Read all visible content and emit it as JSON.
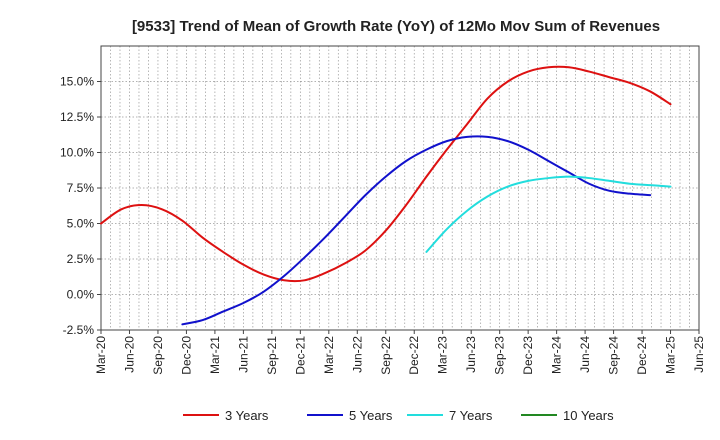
{
  "chart_data": {
    "type": "line",
    "title": "[9533]  Trend of Mean of Growth Rate (YoY) of 12Mo Mov Sum of Revenues",
    "xlabel": "",
    "ylabel": "",
    "ylim": [
      -2.5,
      17.5
    ],
    "x_tick_labels": [
      "Mar-20",
      "Jun-20",
      "Sep-20",
      "Dec-20",
      "Mar-21",
      "Jun-21",
      "Sep-21",
      "Dec-21",
      "Mar-22",
      "Jun-22",
      "Sep-22",
      "Dec-22",
      "Mar-23",
      "Jun-23",
      "Sep-23",
      "Dec-23",
      "Mar-24",
      "Jun-24",
      "Sep-24",
      "Dec-24",
      "Mar-25",
      "Jun-25"
    ],
    "y_ticks": [
      -2.5,
      0,
      2.5,
      5,
      7.5,
      10,
      12.5,
      15
    ],
    "y_tick_labels": [
      "-2.5%",
      "0.0%",
      "2.5%",
      "5.0%",
      "7.5%",
      "10.0%",
      "12.5%",
      "15.0%"
    ],
    "grid": true,
    "series": [
      {
        "name": "3 Years",
        "color": "#dd1111",
        "points": [
          [
            0,
            5.0
          ],
          [
            1,
            6.0
          ],
          [
            2,
            6.3
          ],
          [
            3,
            6.0
          ],
          [
            4,
            5.2
          ],
          [
            5,
            4.0
          ],
          [
            6,
            3.0
          ],
          [
            7,
            2.1
          ],
          [
            8,
            1.4
          ],
          [
            9,
            1.0
          ],
          [
            10,
            1.0
          ],
          [
            11,
            1.5
          ],
          [
            12,
            2.2
          ],
          [
            13,
            3.1
          ],
          [
            14,
            4.5
          ],
          [
            15,
            6.3
          ],
          [
            16,
            8.3
          ],
          [
            17,
            10.2
          ],
          [
            18,
            12.0
          ],
          [
            19,
            13.8
          ],
          [
            20,
            15.0
          ],
          [
            21,
            15.7
          ],
          [
            22,
            16.0
          ],
          [
            23,
            16.0
          ],
          [
            24,
            15.7
          ],
          [
            25,
            15.3
          ],
          [
            26,
            14.9
          ],
          [
            27,
            14.3
          ],
          [
            28,
            13.4
          ]
        ]
      },
      {
        "name": "5 Years",
        "color": "#1111cc",
        "points": [
          [
            4,
            -2.1
          ],
          [
            5,
            -1.8
          ],
          [
            6,
            -1.2
          ],
          [
            7,
            -0.6
          ],
          [
            8,
            0.2
          ],
          [
            9,
            1.3
          ],
          [
            10,
            2.6
          ],
          [
            11,
            4.0
          ],
          [
            12,
            5.5
          ],
          [
            13,
            7.0
          ],
          [
            14,
            8.3
          ],
          [
            15,
            9.4
          ],
          [
            16,
            10.2
          ],
          [
            17,
            10.8
          ],
          [
            18,
            11.1
          ],
          [
            19,
            11.1
          ],
          [
            20,
            10.8
          ],
          [
            21,
            10.2
          ],
          [
            22,
            9.4
          ],
          [
            23,
            8.6
          ],
          [
            24,
            7.8
          ],
          [
            25,
            7.3
          ],
          [
            26,
            7.1
          ],
          [
            27,
            7.0
          ]
        ]
      },
      {
        "name": "7 Years",
        "color": "#22dddd",
        "points": [
          [
            16,
            3.0
          ],
          [
            17,
            4.6
          ],
          [
            18,
            5.9
          ],
          [
            19,
            6.9
          ],
          [
            20,
            7.6
          ],
          [
            21,
            8.0
          ],
          [
            22,
            8.2
          ],
          [
            23,
            8.3
          ],
          [
            24,
            8.2
          ],
          [
            25,
            8.0
          ],
          [
            26,
            7.8
          ],
          [
            27,
            7.7
          ],
          [
            28,
            7.6
          ]
        ]
      },
      {
        "name": "10 Years",
        "color": "#228822",
        "points": []
      }
    ]
  }
}
